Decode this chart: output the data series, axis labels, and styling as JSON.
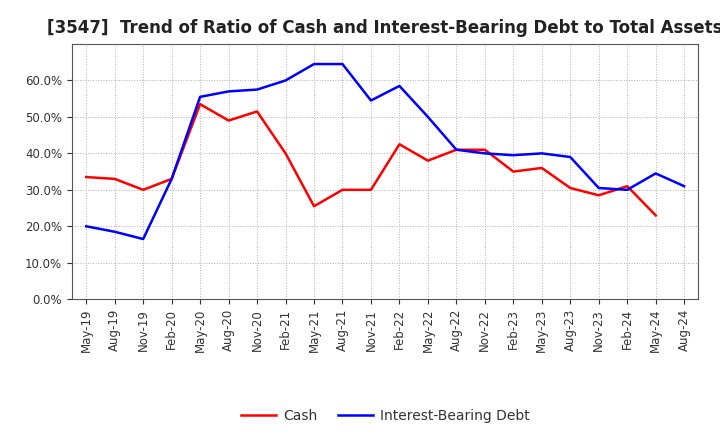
{
  "title": "[3547]  Trend of Ratio of Cash and Interest-Bearing Debt to Total Assets",
  "x_labels": [
    "May-19",
    "Aug-19",
    "Nov-19",
    "Feb-20",
    "May-20",
    "Aug-20",
    "Nov-20",
    "Feb-21",
    "May-21",
    "Aug-21",
    "Nov-21",
    "Feb-22",
    "May-22",
    "Aug-22",
    "Nov-22",
    "Feb-23",
    "May-23",
    "Aug-23",
    "Nov-23",
    "Feb-24",
    "May-24",
    "Aug-24"
  ],
  "cash": [
    0.335,
    0.33,
    0.3,
    0.33,
    0.535,
    0.49,
    0.515,
    0.4,
    0.255,
    0.3,
    0.3,
    0.425,
    0.38,
    0.41,
    0.41,
    0.35,
    0.36,
    0.305,
    0.285,
    0.31,
    0.23,
    null
  ],
  "ibd": [
    0.2,
    0.185,
    0.165,
    0.33,
    0.555,
    0.57,
    0.575,
    0.6,
    0.645,
    0.645,
    0.545,
    0.585,
    0.5,
    0.41,
    0.4,
    0.395,
    0.4,
    0.39,
    0.305,
    0.3,
    0.345,
    0.31
  ],
  "cash_color": "#ff0000",
  "ibd_color": "#0000ff",
  "bg_color": "#ffffff",
  "plot_bg_color": "#ffffff",
  "grid_color": "#b0b0b0",
  "ylim": [
    0.0,
    0.7
  ],
  "yticks": [
    0.0,
    0.1,
    0.2,
    0.3,
    0.4,
    0.5,
    0.6
  ],
  "legend_cash": "Cash",
  "legend_ibd": "Interest-Bearing Debt",
  "title_fontsize": 12,
  "axis_fontsize": 8.5,
  "legend_fontsize": 10,
  "line_width": 1.8
}
